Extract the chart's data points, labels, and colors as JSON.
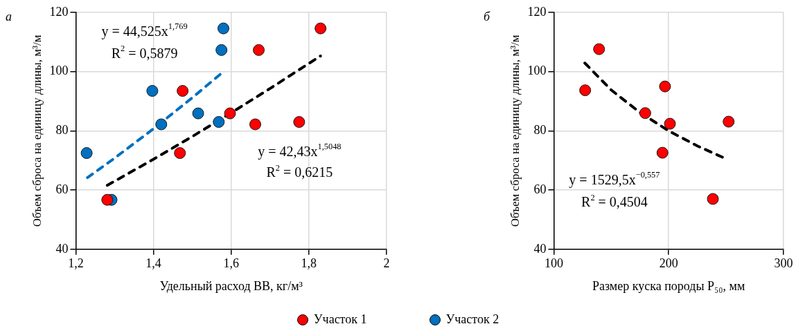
{
  "chart_data": [
    {
      "type": "scatter",
      "title": "а",
      "xlabel": "Удельный расход ВВ, кг/м³",
      "ylabel": "Объем сброса на единицу длины, м³/м",
      "xlim": [
        1.2,
        2
      ],
      "xticks": [
        {
          "value": 1.2,
          "label": "1,2"
        },
        {
          "value": 1.4,
          "label": "1,4"
        },
        {
          "value": 1.6,
          "label": "1,6"
        },
        {
          "value": 1.8,
          "label": "1,8"
        },
        2
      ],
      "ylim": [
        40,
        120
      ],
      "yticks": [
        40,
        60,
        80,
        100,
        120
      ],
      "grid": true,
      "legend": "bottom",
      "marker": "circle",
      "series": [
        {
          "name": "Участок 1",
          "color": "#ff0000",
          "x": [
            1.281,
            1.475,
            1.468,
            1.597,
            1.671,
            1.662,
            1.775,
            1.83
          ],
          "values": [
            56.7,
            93.5,
            72.5,
            85.9,
            107.3,
            82.2,
            83.0,
            114.6
          ]
        },
        {
          "name": "Участок 2",
          "color": "#0070c0",
          "x": [
            1.228,
            1.292,
            1.397,
            1.42,
            1.515,
            1.568,
            1.575,
            1.58
          ],
          "values": [
            72.5,
            56.7,
            93.5,
            82.2,
            85.9,
            83.0,
            107.3,
            114.6
          ]
        },
        {
          "type": "line",
          "color": "#0070c0",
          "line_style": "dashed",
          "marker": "none",
          "x": [
            1.23,
            1.3,
            1.4,
            1.5,
            1.58
          ],
          "values": [
            64.2,
            70.8,
            80.7,
            91.2,
            100.0
          ]
        },
        {
          "type": "line",
          "color": "#000000",
          "line_style": "dashed",
          "marker": "none",
          "x": [
            1.281,
            1.4,
            1.5,
            1.6,
            1.7,
            1.83
          ],
          "values": [
            61.6,
            70.4,
            78.1,
            86.1,
            94.3,
            105.3
          ]
        }
      ],
      "annotations": [
        "y = 44,525x$^{1,769}$",
        "R$^{2}$ = 0,5879",
        "y = 42,43x$^{1,5048}$",
        "R$^{2}$ = 0,6215"
      ]
    },
    {
      "type": "scatter",
      "title": "б",
      "xlabel": "Размер куска породы P₅₀, мм",
      "ylabel": "Объем сброса на единицу длины, м³/м",
      "xlim": [
        100,
        300
      ],
      "xticks": [
        100,
        200,
        300
      ],
      "ylim": [
        40,
        120
      ],
      "yticks": [
        40,
        60,
        80,
        100,
        120
      ],
      "grid": true,
      "marker": "circle",
      "series": [
        {
          "color": "#ff0000",
          "x": [
            127.3,
            139.4,
            179.6,
            196.8,
            201.1,
            194.6,
            238.5,
            252.2
          ],
          "values": [
            93.7,
            107.6,
            86.0,
            95.0,
            82.4,
            72.6,
            57.0,
            83.1
          ]
        },
        {
          "type": "line",
          "color": "#000000",
          "line_style": "dashed",
          "marker": "none",
          "x": [
            127,
            150,
            175,
            200,
            225,
            248
          ],
          "values": [
            102.9,
            93.8,
            86.2,
            80.0,
            74.9,
            70.9
          ]
        }
      ],
      "annotations": [
        "y = 1529,5x$^{−0,557}$",
        "R$^{2}$ = 0,4504"
      ]
    }
  ]
}
